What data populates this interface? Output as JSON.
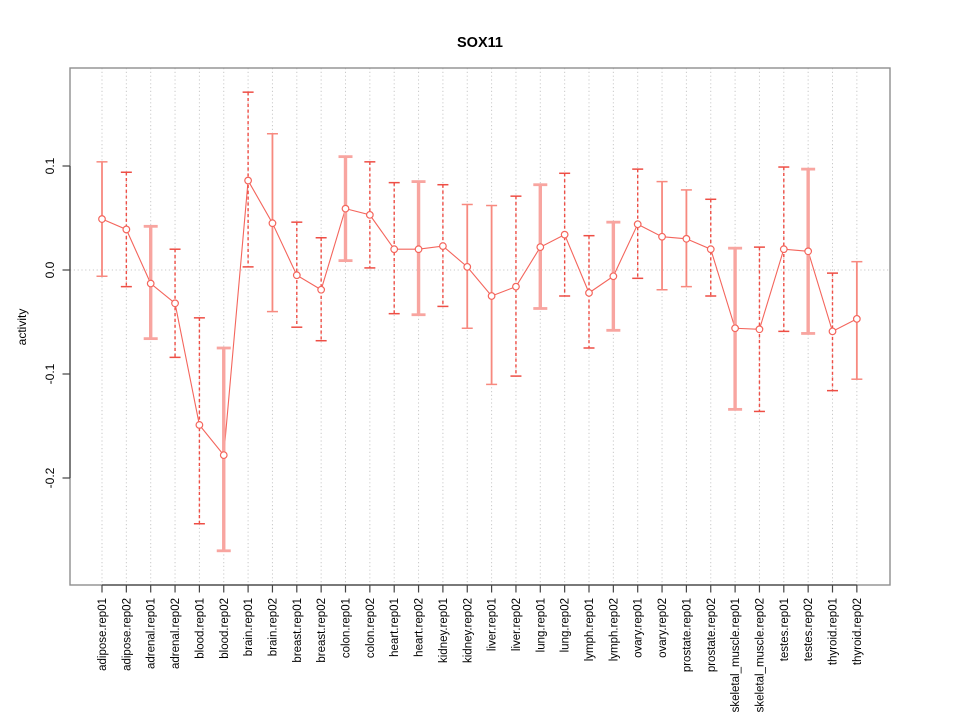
{
  "chart_data": {
    "type": "line",
    "title": "SOX11",
    "xlabel": "",
    "ylabel": "activity",
    "legend": "none",
    "grid": "dotted vertical gridline per category plus dotted zero line",
    "error_bars": true,
    "point_marker": "open-circle",
    "ylim": [
      -0.295,
      0.192
    ],
    "ytick_values": [
      0.1,
      0.0,
      -0.1,
      -0.2
    ],
    "ytick_labels": [
      "0.1",
      "0.0",
      "-0.1",
      "-0.2"
    ],
    "categories": [
      "adipose.rep01",
      "adipose.rep02",
      "adrenal.rep01",
      "adrenal.rep02",
      "blood.rep01",
      "blood.rep02",
      "brain.rep01",
      "brain.rep02",
      "breast.rep01",
      "breast.rep02",
      "colon.rep01",
      "colon.rep02",
      "heart.rep01",
      "heart.rep02",
      "kidney.rep01",
      "kidney.rep02",
      "liver.rep01",
      "liver.rep02",
      "lung.rep01",
      "lung.rep02",
      "lymph.rep01",
      "lymph.rep02",
      "ovary.rep01",
      "ovary.rep02",
      "prostate.rep01",
      "prostate.rep02",
      "skeletal_muscle.rep01",
      "skeletal_muscle.rep02",
      "testes.rep01",
      "testes.rep02",
      "thyroid.rep01",
      "thyroid.rep02"
    ],
    "points": [
      {
        "label": "adipose.rep01",
        "value": 0.049,
        "lo": -0.006,
        "hi": 0.104,
        "bar": "solid"
      },
      {
        "label": "adipose.rep02",
        "value": 0.039,
        "lo": -0.016,
        "hi": 0.094,
        "bar": "dashed"
      },
      {
        "label": "adrenal.rep01",
        "value": -0.013,
        "lo": -0.066,
        "hi": 0.042,
        "bar": "wide"
      },
      {
        "label": "adrenal.rep02",
        "value": -0.032,
        "lo": -0.084,
        "hi": 0.02,
        "bar": "dashed"
      },
      {
        "label": "blood.rep01",
        "value": -0.149,
        "lo": -0.244,
        "hi": -0.046,
        "bar": "dashed"
      },
      {
        "label": "blood.rep02",
        "value": -0.178,
        "lo": -0.27,
        "hi": -0.075,
        "bar": "wide"
      },
      {
        "label": "brain.rep01",
        "value": 0.086,
        "lo": 0.003,
        "hi": 0.171,
        "bar": "dashed"
      },
      {
        "label": "brain.rep02",
        "value": 0.045,
        "lo": -0.04,
        "hi": 0.131,
        "bar": "solid"
      },
      {
        "label": "breast.rep01",
        "value": -0.005,
        "lo": -0.055,
        "hi": 0.046,
        "bar": "dashed"
      },
      {
        "label": "breast.rep02",
        "value": -0.019,
        "lo": -0.068,
        "hi": 0.031,
        "bar": "dashed"
      },
      {
        "label": "colon.rep01",
        "value": 0.059,
        "lo": 0.009,
        "hi": 0.109,
        "bar": "wide"
      },
      {
        "label": "colon.rep02",
        "value": 0.053,
        "lo": 0.002,
        "hi": 0.104,
        "bar": "dashed"
      },
      {
        "label": "heart.rep01",
        "value": 0.02,
        "lo": -0.042,
        "hi": 0.084,
        "bar": "dashed"
      },
      {
        "label": "heart.rep02",
        "value": 0.02,
        "lo": -0.043,
        "hi": 0.085,
        "bar": "wide"
      },
      {
        "label": "kidney.rep01",
        "value": 0.023,
        "lo": -0.035,
        "hi": 0.082,
        "bar": "dashed"
      },
      {
        "label": "kidney.rep02",
        "value": 0.003,
        "lo": -0.056,
        "hi": 0.063,
        "bar": "solid"
      },
      {
        "label": "liver.rep01",
        "value": -0.025,
        "lo": -0.11,
        "hi": 0.062,
        "bar": "solid"
      },
      {
        "label": "liver.rep02",
        "value": -0.016,
        "lo": -0.102,
        "hi": 0.071,
        "bar": "dashed"
      },
      {
        "label": "lung.rep01",
        "value": 0.022,
        "lo": -0.037,
        "hi": 0.082,
        "bar": "wide"
      },
      {
        "label": "lung.rep02",
        "value": 0.034,
        "lo": -0.025,
        "hi": 0.093,
        "bar": "dashed"
      },
      {
        "label": "lymph.rep01",
        "value": -0.022,
        "lo": -0.075,
        "hi": 0.033,
        "bar": "dashed"
      },
      {
        "label": "lymph.rep02",
        "value": -0.006,
        "lo": -0.058,
        "hi": 0.046,
        "bar": "wide"
      },
      {
        "label": "ovary.rep01",
        "value": 0.044,
        "lo": -0.008,
        "hi": 0.097,
        "bar": "dashed"
      },
      {
        "label": "ovary.rep02",
        "value": 0.032,
        "lo": -0.019,
        "hi": 0.085,
        "bar": "solid"
      },
      {
        "label": "prostate.rep01",
        "value": 0.03,
        "lo": -0.016,
        "hi": 0.077,
        "bar": "solid"
      },
      {
        "label": "prostate.rep02",
        "value": 0.02,
        "lo": -0.025,
        "hi": 0.068,
        "bar": "dashed"
      },
      {
        "label": "skeletal_muscle.rep01",
        "value": -0.056,
        "lo": -0.134,
        "hi": 0.021,
        "bar": "wide"
      },
      {
        "label": "skeletal_muscle.rep02",
        "value": -0.057,
        "lo": -0.136,
        "hi": 0.022,
        "bar": "dashed"
      },
      {
        "label": "testes.rep01",
        "value": 0.02,
        "lo": -0.059,
        "hi": 0.099,
        "bar": "dashed"
      },
      {
        "label": "testes.rep02",
        "value": 0.018,
        "lo": -0.061,
        "hi": 0.097,
        "bar": "wide"
      },
      {
        "label": "thyroid.rep01",
        "value": -0.059,
        "lo": -0.116,
        "hi": -0.003,
        "bar": "dashed"
      },
      {
        "label": "thyroid.rep02",
        "value": -0.047,
        "lo": -0.105,
        "hi": 0.008,
        "bar": "solid"
      }
    ],
    "colors": {
      "line": "#f4655c",
      "point": "#f4655c",
      "bar_wide": "#f8a5a0",
      "bar_solid": "#f7897f",
      "bar_dashed": "#ee4e45",
      "grid": "#c9c9c9",
      "box": "#8e8e8e",
      "axis": "#444444",
      "text": "#000000"
    }
  }
}
